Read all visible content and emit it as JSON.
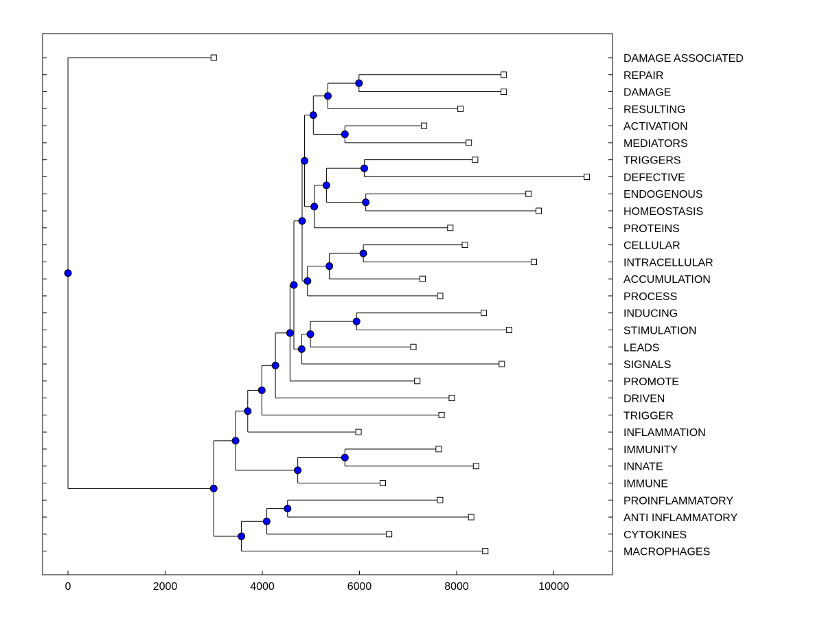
{
  "chart_data": {
    "type": "dendrogram",
    "orientation": "horizontal",
    "xlabel": "",
    "ylabel": "",
    "xlim": [
      -500,
      11300
    ],
    "x_ticks": [
      0,
      2000,
      4000,
      6000,
      8000,
      10000
    ],
    "x_tick_labels": [
      "0",
      "2000",
      "4000",
      "6000",
      "8000",
      "10000"
    ],
    "colors": {
      "node_fill": "#0000ff",
      "line": "#000000",
      "leaf_fill": "#ffffff",
      "frame": "#000000"
    },
    "leaves": [
      {
        "label": "DAMAGE ASSOCIATED",
        "x": 3000
      },
      {
        "label": "REPAIR",
        "x": 8970
      },
      {
        "label": "DAMAGE",
        "x": 8970
      },
      {
        "label": "RESULTING",
        "x": 8080
      },
      {
        "label": "ACTIVATION",
        "x": 7330
      },
      {
        "label": "MEDIATORS",
        "x": 8250
      },
      {
        "label": "TRIGGERS",
        "x": 8380
      },
      {
        "label": "DEFECTIVE",
        "x": 10680
      },
      {
        "label": "ENDOGENOUS",
        "x": 9480
      },
      {
        "label": "HOMEOSTASIS",
        "x": 9690
      },
      {
        "label": "PROTEINS",
        "x": 7870
      },
      {
        "label": "CELLULAR",
        "x": 8170
      },
      {
        "label": "INTRACELLULAR",
        "x": 9590
      },
      {
        "label": "ACCUMULATION",
        "x": 7300
      },
      {
        "label": "PROCESS",
        "x": 7660
      },
      {
        "label": "INDUCING",
        "x": 8560
      },
      {
        "label": "STIMULATION",
        "x": 9080
      },
      {
        "label": "LEADS",
        "x": 7110
      },
      {
        "label": "SIGNALS",
        "x": 8930
      },
      {
        "label": "PROMOTE",
        "x": 7190
      },
      {
        "label": "DRIVEN",
        "x": 7900
      },
      {
        "label": "TRIGGER",
        "x": 7690
      },
      {
        "label": "INFLAMMATION",
        "x": 5980
      },
      {
        "label": "IMMUNITY",
        "x": 7630
      },
      {
        "label": "INNATE",
        "x": 8400
      },
      {
        "label": "IMMUNE",
        "x": 6480
      },
      {
        "label": "PROINFLAMMATORY",
        "x": 7660
      },
      {
        "label": "ANTI INFLAMMATORY",
        "x": 8300
      },
      {
        "label": "CYTOKINES",
        "x": 6610
      },
      {
        "label": "MACROPHAGES",
        "x": 8590
      }
    ],
    "nodes": [
      {
        "id": "A",
        "x": 5990,
        "children": [
          "L1",
          "L2"
        ]
      },
      {
        "id": "B",
        "x": 5350,
        "children": [
          "A",
          "L3"
        ]
      },
      {
        "id": "C",
        "x": 5700,
        "children": [
          "L4",
          "L5"
        ]
      },
      {
        "id": "D",
        "x": 5050,
        "children": [
          "B",
          "C"
        ]
      },
      {
        "id": "E",
        "x": 6100,
        "children": [
          "L6",
          "L7"
        ]
      },
      {
        "id": "F",
        "x": 6130,
        "children": [
          "L8",
          "L9"
        ]
      },
      {
        "id": "G",
        "x": 5320,
        "children": [
          "E",
          "F"
        ]
      },
      {
        "id": "H",
        "x": 5070,
        "children": [
          "G",
          "L10"
        ]
      },
      {
        "id": "I",
        "x": 4870,
        "children": [
          "D",
          "H"
        ]
      },
      {
        "id": "J",
        "x": 6080,
        "children": [
          "L11",
          "L12"
        ]
      },
      {
        "id": "K",
        "x": 5380,
        "children": [
          "J",
          "L13"
        ]
      },
      {
        "id": "L",
        "x": 4930,
        "children": [
          "K",
          "L14"
        ]
      },
      {
        "id": "M",
        "x": 4820,
        "children": [
          "I",
          "L"
        ]
      },
      {
        "id": "N",
        "x": 5940,
        "children": [
          "L15",
          "L16"
        ]
      },
      {
        "id": "O",
        "x": 4990,
        "children": [
          "N",
          "L17"
        ]
      },
      {
        "id": "P",
        "x": 4810,
        "children": [
          "O",
          "L18"
        ]
      },
      {
        "id": "Q",
        "x": 4650,
        "children": [
          "M",
          "P"
        ]
      },
      {
        "id": "R",
        "x": 4570,
        "children": [
          "Q",
          "L19"
        ]
      },
      {
        "id": "S",
        "x": 4270,
        "children": [
          "R",
          "L20"
        ]
      },
      {
        "id": "T",
        "x": 3990,
        "children": [
          "S",
          "L21"
        ]
      },
      {
        "id": "U",
        "x": 3700,
        "children": [
          "T",
          "L22"
        ]
      },
      {
        "id": "V",
        "x": 5700,
        "children": [
          "L23",
          "L24"
        ]
      },
      {
        "id": "W",
        "x": 4730,
        "children": [
          "V",
          "L25"
        ]
      },
      {
        "id": "X",
        "x": 3450,
        "children": [
          "U",
          "W"
        ]
      },
      {
        "id": "Y",
        "x": 4520,
        "children": [
          "L26",
          "L27"
        ]
      },
      {
        "id": "Z",
        "x": 4090,
        "children": [
          "Y",
          "L28"
        ]
      },
      {
        "id": "AA",
        "x": 3570,
        "children": [
          "Z",
          "L29"
        ]
      },
      {
        "id": "AB",
        "x": 3000,
        "children": [
          "X",
          "AA"
        ]
      },
      {
        "id": "ROOT",
        "x": 0,
        "children": [
          "L0",
          "AB"
        ]
      }
    ]
  }
}
